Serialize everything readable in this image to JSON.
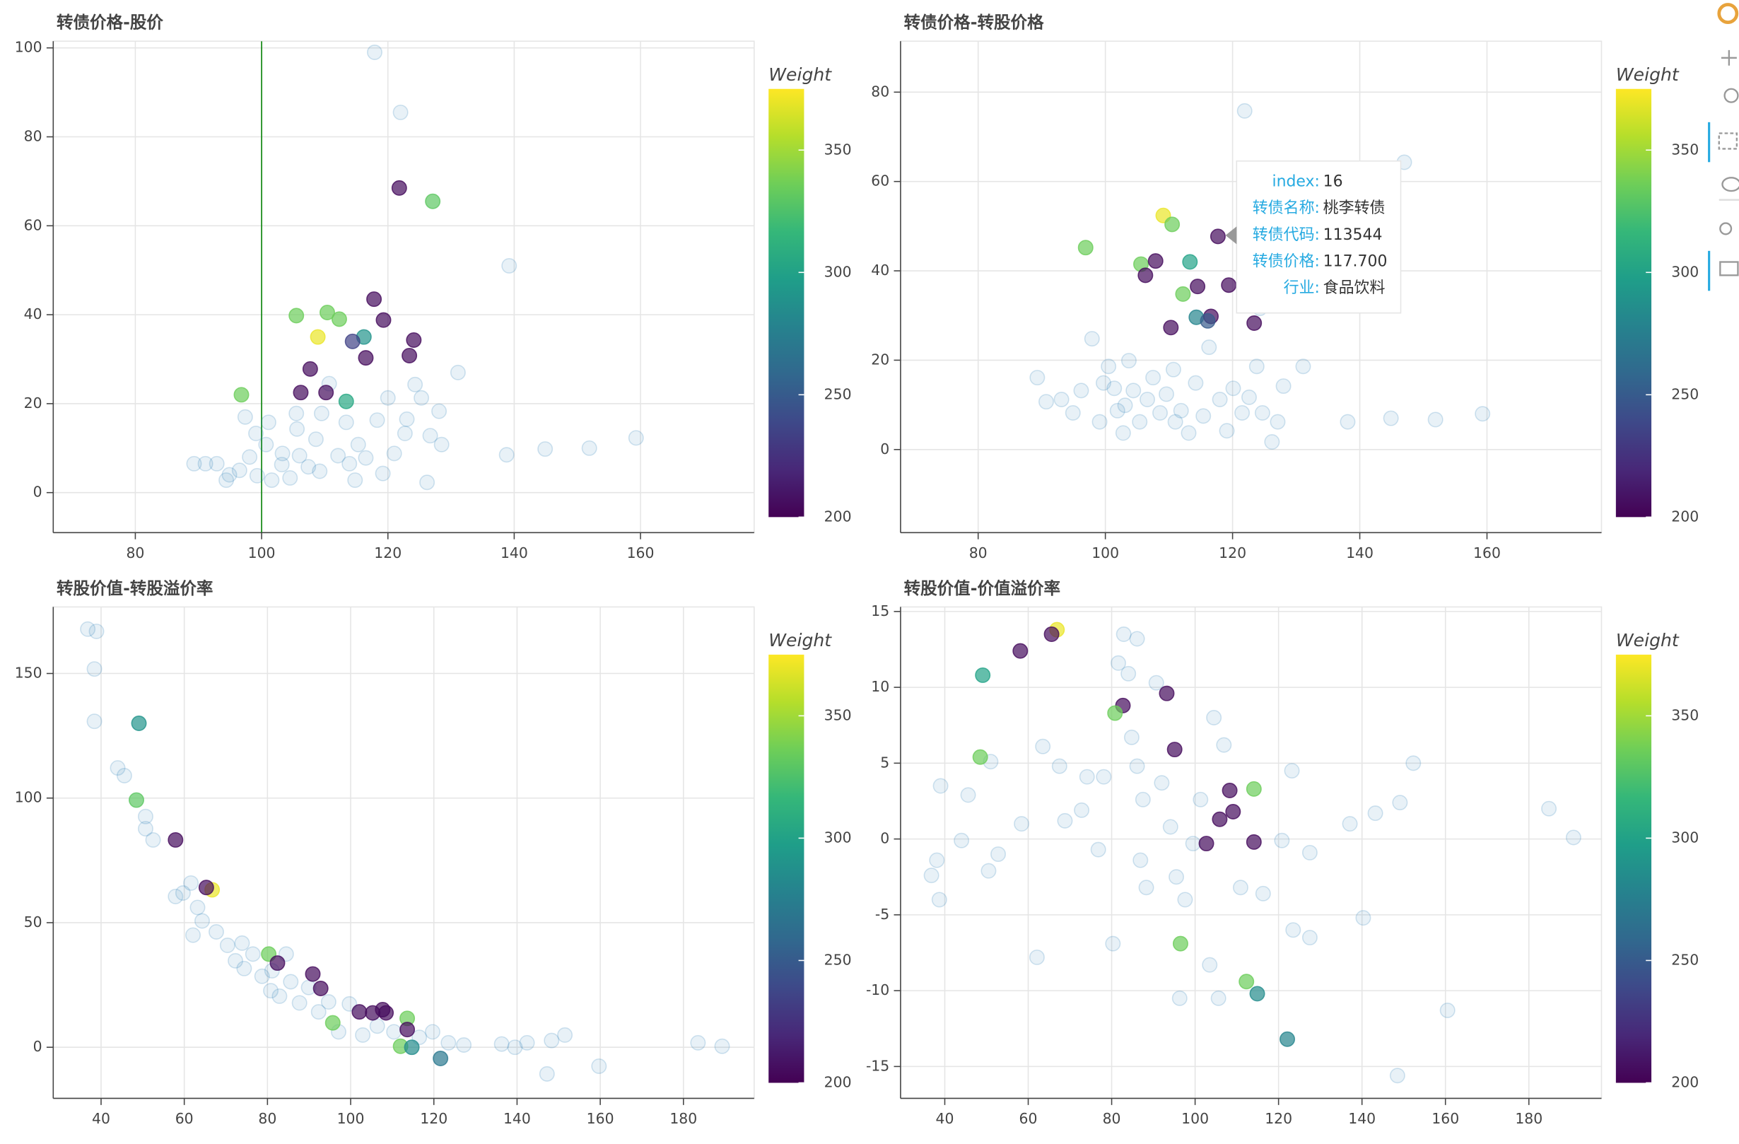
{
  "chart_data": [
    {
      "type": "scatter",
      "title": "转债价格-股价",
      "xlim": [
        67,
        178
      ],
      "ylim": [
        -9,
        101.5
      ],
      "xticks": [
        80,
        100,
        120,
        140,
        160
      ],
      "yticks": [
        0,
        20,
        40,
        60,
        80,
        100
      ],
      "grid": true,
      "vline": {
        "x": 100,
        "color": "#008000"
      },
      "series": [
        {
          "color": "#1f77b4",
          "x": [
            117.9,
            122,
            139.2,
            131.1,
            138.8,
            144.9,
            151.9,
            159.3,
            126.2,
            119.2,
            114.8,
            89.3,
            91.1,
            92.9,
            94.9,
            96.5,
            98.1,
            99.3,
            100.7,
            103.2,
            104.5,
            105.5,
            106,
            108.6,
            109.5,
            110.7,
            112.1,
            113.4,
            115.3,
            118.3,
            120,
            121,
            122.7,
            124.3,
            125.3,
            126.7,
            128.1,
            128.5,
            101.1,
            97.4,
            99.1,
            105.6,
            107.4,
            116.5,
            109.2,
            94.4,
            101.6,
            103.3,
            113.9,
            123
          ],
          "values": [
            99,
            85.5,
            51,
            27,
            8.5,
            9.8,
            10,
            12.3,
            2.3,
            4.3,
            2.8,
            6.5,
            6.5,
            6.5,
            4,
            5,
            8,
            3.8,
            10.8,
            6.3,
            3.3,
            17.8,
            8.3,
            12,
            17.8,
            24.5,
            8.3,
            15.8,
            10.8,
            16.3,
            21.3,
            8.8,
            13.3,
            24.3,
            21.3,
            12.8,
            18.3,
            10.8,
            15.8,
            17,
            13.3,
            14.3,
            5.8,
            7.8,
            4.8,
            2.8,
            2.8,
            8.8,
            6.5,
            16.5
          ]
        },
        {
          "x": [
            121.8,
            127.1,
            105.5,
            110.4,
            112.3,
            108.9,
            116.2,
            117.8,
            119.3,
            114.4,
            124.1,
            116.5,
            123.4,
            107.7,
            106.2,
            110.2,
            113.4,
            96.8
          ],
          "values": [
            68.5,
            65.5,
            39.8,
            40.5,
            39,
            35,
            35,
            43.5,
            38.8,
            34,
            34.3,
            30.3,
            30.8,
            27.8,
            22.5,
            22.5,
            20.5,
            22
          ],
          "weight": [
            205,
            330,
            335,
            335,
            335,
            370,
            290,
            205,
            205,
            235,
            205,
            205,
            205,
            205,
            205,
            205,
            305,
            335
          ]
        }
      ],
      "colorbar": {
        "title": "Weight",
        "lim": [
          200,
          375
        ],
        "ticks": [
          200,
          250,
          300,
          350
        ],
        "palette": [
          "#440154",
          "#482878",
          "#3e4989",
          "#31688e",
          "#26828e",
          "#1f9e89",
          "#35b779",
          "#6ece58",
          "#b5de2b",
          "#fde725"
        ]
      }
    },
    {
      "type": "scatter",
      "title": "转债价格-转股价格",
      "xlim": [
        67.8,
        178
      ],
      "ylim": [
        -18.6,
        91.4
      ],
      "xticks": [
        80,
        100,
        120,
        140,
        160
      ],
      "yticks": [
        0,
        20,
        40,
        60,
        80
      ],
      "grid": true,
      "series": [
        {
          "color": "#1f77b4",
          "x": [
            121.9,
            147,
            124.3,
            131.1,
            138.1,
            144.9,
            151.9,
            159.3,
            126.2,
            89.3,
            90.7,
            93.1,
            94.9,
            96.2,
            97.9,
            99.1,
            100.5,
            101.9,
            102.8,
            103.7,
            104.4,
            105.4,
            106.6,
            107.5,
            108.6,
            109.6,
            110.7,
            111.9,
            113.1,
            114.2,
            115.4,
            116.3,
            118,
            119.1,
            120.1,
            121.5,
            122.6,
            123.8,
            124.7,
            127.1,
            128,
            101.4,
            103.1,
            99.7,
            111
          ],
          "values": [
            75.8,
            64.3,
            31.6,
            18.6,
            6.2,
            7,
            6.7,
            8,
            1.7,
            16.1,
            10.7,
            11.2,
            8.2,
            13.2,
            24.8,
            6.2,
            18.6,
            8.7,
            3.7,
            19.9,
            13.2,
            6.2,
            11.2,
            16.1,
            8.2,
            12.4,
            17.9,
            8.7,
            3.7,
            14.9,
            7.5,
            22.9,
            11.2,
            4.2,
            13.7,
            8.2,
            11.7,
            18.6,
            8.2,
            6.2,
            14.2,
            13.7,
            9.9,
            14.9,
            6.2
          ]
        },
        {
          "x": [
            109.1,
            110.5,
            96.9,
            105.6,
            107.9,
            113.3,
            106.3,
            117.7,
            114.5,
            119.4,
            112.2,
            114.3,
            116.6,
            116.1,
            110.3,
            123.4
          ],
          "values": [
            52.4,
            50.4,
            45.2,
            41.5,
            42.2,
            42,
            39,
            47.7,
            36.5,
            36.8,
            34.8,
            29.6,
            29.8,
            28.8,
            27.3,
            28.3
          ],
          "weight": [
            370,
            335,
            335,
            335,
            205,
            300,
            205,
            205,
            205,
            205,
            335,
            280,
            205,
            250,
            205,
            205
          ]
        }
      ],
      "colorbar": {
        "title": "Weight",
        "lim": [
          200,
          375
        ],
        "ticks": [
          200,
          250,
          300,
          350
        ],
        "palette": [
          "#440154",
          "#482878",
          "#3e4989",
          "#31688e",
          "#26828e",
          "#1f9e89",
          "#35b779",
          "#6ece58",
          "#b5de2b",
          "#fde725"
        ]
      },
      "tooltip": {
        "rows": [
          {
            "label": "index:",
            "value": "16"
          },
          {
            "label": "转债名称:",
            "value": "桃李转债"
          },
          {
            "label": "转债代码:",
            "value": "113544"
          },
          {
            "label": "转债价格:",
            "value": "117.700"
          },
          {
            "label": "行业:",
            "value": "食品饮料"
          }
        ]
      }
    },
    {
      "type": "scatter",
      "title": "转股价值-转股溢价率",
      "xlim": [
        28.5,
        197
      ],
      "ylim": [
        -20.5,
        176.7
      ],
      "xticks": [
        40,
        60,
        80,
        100,
        120,
        140,
        160,
        180
      ],
      "yticks": [
        0,
        50,
        100,
        150
      ],
      "grid": true,
      "series": [
        {
          "color": "#1f77b4",
          "x": [
            36.8,
            38.9,
            38.4,
            38.4,
            44,
            45.6,
            50.7,
            50.7,
            52.5,
            57.9,
            59.7,
            61.6,
            63.2,
            62.1,
            64.3,
            67.7,
            70.4,
            72.3,
            74.4,
            76.5,
            78.7,
            80.8,
            82.9,
            85.6,
            87.7,
            89.9,
            94.7,
            97.1,
            99.7,
            102.9,
            106.4,
            110.4,
            116.5,
            119.7,
            123.5,
            127.2,
            136.3,
            139.5,
            142.4,
            147.2,
            148.3,
            151.5,
            159.7,
            183.5,
            189.3,
            73.9,
            81.1,
            84.5,
            92.3
          ],
          "values": [
            167.8,
            166.9,
            151.8,
            130.8,
            112.1,
            109,
            92.6,
            87.7,
            83.2,
            60.5,
            61.9,
            65.9,
            56.1,
            45,
            50.7,
            46.3,
            40.9,
            34.7,
            31.6,
            37.4,
            28.5,
            22.7,
            20.5,
            26.3,
            17.8,
            24,
            18.2,
            6.2,
            17.4,
            4.9,
            8.5,
            6.2,
            4,
            6.2,
            1.8,
            0.9,
            1.3,
            0,
            1.8,
            -10.7,
            2.7,
            4.9,
            -7.6,
            1.8,
            0.4,
            41.8,
            30.7,
            37.4,
            14.2
          ]
        },
        {
          "x": [
            49.1,
            48.5,
            57.9,
            66.7,
            65.3,
            80.3,
            82.4,
            90.9,
            92.8,
            95.7,
            102.1,
            105.3,
            107.7,
            108.5,
            113.6,
            113.6,
            112,
            114.7,
            121.6
          ],
          "values": [
            130,
            99.2,
            83.2,
            63.2,
            64.1,
            37.4,
            33.8,
            29.4,
            23.6,
            9.8,
            14.2,
            13.8,
            15.1,
            13.8,
            11.6,
            7.1,
            0.4,
            0,
            -4.5
          ],
          "weight": [
            290,
            330,
            205,
            370,
            205,
            335,
            205,
            205,
            205,
            335,
            205,
            205,
            205,
            205,
            335,
            205,
            335,
            285,
            270
          ]
        }
      ],
      "colorbar": {
        "title": "Weight",
        "lim": [
          200,
          375
        ],
        "ticks": [
          200,
          250,
          300,
          350
        ],
        "palette": [
          "#440154",
          "#482878",
          "#3e4989",
          "#31688e",
          "#26828e",
          "#1f9e89",
          "#35b779",
          "#6ece58",
          "#b5de2b",
          "#fde725"
        ]
      }
    },
    {
      "type": "scatter",
      "title": "转股价值-价值溢价率",
      "xlim": [
        29.4,
        197.4
      ],
      "ylim": [
        -17.1,
        15.3
      ],
      "xticks": [
        40,
        60,
        80,
        100,
        120,
        140,
        160,
        180
      ],
      "yticks": [
        -15,
        -10,
        -5,
        0,
        5,
        10,
        15
      ],
      "grid": true,
      "series": [
        {
          "color": "#1f77b4",
          "x": [
            39,
            38.1,
            36.8,
            38.7,
            44,
            45.6,
            51,
            50.5,
            58.4,
            62.1,
            63.5,
            67.5,
            68.8,
            72.8,
            74.1,
            76.8,
            78.1,
            80.3,
            82.9,
            86.1,
            84,
            84.8,
            86.1,
            87.5,
            86.9,
            88.3,
            90.7,
            92,
            94.1,
            95.5,
            97.6,
            96.3,
            99.5,
            101.3,
            104.5,
            106.9,
            103.5,
            105.6,
            110.9,
            116.3,
            120.8,
            123.2,
            127.5,
            123.5,
            127.5,
            137.1,
            140.3,
            143.2,
            149.1,
            152.3,
            148.5,
            160.5,
            184.8,
            190.7,
            52.8,
            81.6
          ],
          "values": [
            3.5,
            -1.4,
            -2.4,
            -4,
            -0.1,
            2.9,
            5.1,
            -2.1,
            1,
            -7.8,
            6.1,
            4.8,
            1.2,
            1.9,
            4.1,
            -0.7,
            4.1,
            -6.9,
            13.5,
            13.2,
            10.9,
            6.7,
            4.8,
            2.6,
            -1.4,
            -3.2,
            10.3,
            3.7,
            0.8,
            -2.5,
            -4,
            -10.5,
            -0.3,
            2.6,
            8,
            6.2,
            -8.3,
            -10.5,
            -3.2,
            -3.6,
            -0.1,
            4.5,
            -0.9,
            -6,
            -6.5,
            1,
            -5.2,
            1.7,
            2.4,
            5,
            -15.6,
            -11.3,
            2,
            0.1,
            -1,
            11.6
          ]
        },
        {
          "x": [
            66.9,
            65.6,
            58.1,
            49.1,
            82.7,
            80.8,
            93.2,
            95.1,
            48.5,
            108.3,
            114.1,
            109.1,
            105.9,
            102.7,
            114.1,
            96.5,
            112.3,
            114.9,
            122.1
          ],
          "values": [
            13.8,
            13.5,
            12.4,
            10.8,
            8.8,
            8.3,
            9.6,
            5.9,
            5.4,
            3.2,
            3.3,
            1.8,
            1.3,
            -0.3,
            -0.2,
            -6.9,
            -9.4,
            -10.2,
            -13.2
          ],
          "weight": [
            370,
            205,
            205,
            300,
            205,
            335,
            205,
            205,
            335,
            205,
            335,
            205,
            205,
            205,
            205,
            335,
            335,
            285,
            280
          ]
        }
      ],
      "colorbar": {
        "title": "Weight",
        "lim": [
          200,
          375
        ],
        "ticks": [
          200,
          250,
          300,
          350
        ],
        "palette": [
          "#440154",
          "#482878",
          "#3e4989",
          "#31688e",
          "#26828e",
          "#1f9e89",
          "#35b779",
          "#6ece58",
          "#b5de2b",
          "#fde725"
        ]
      }
    }
  ]
}
